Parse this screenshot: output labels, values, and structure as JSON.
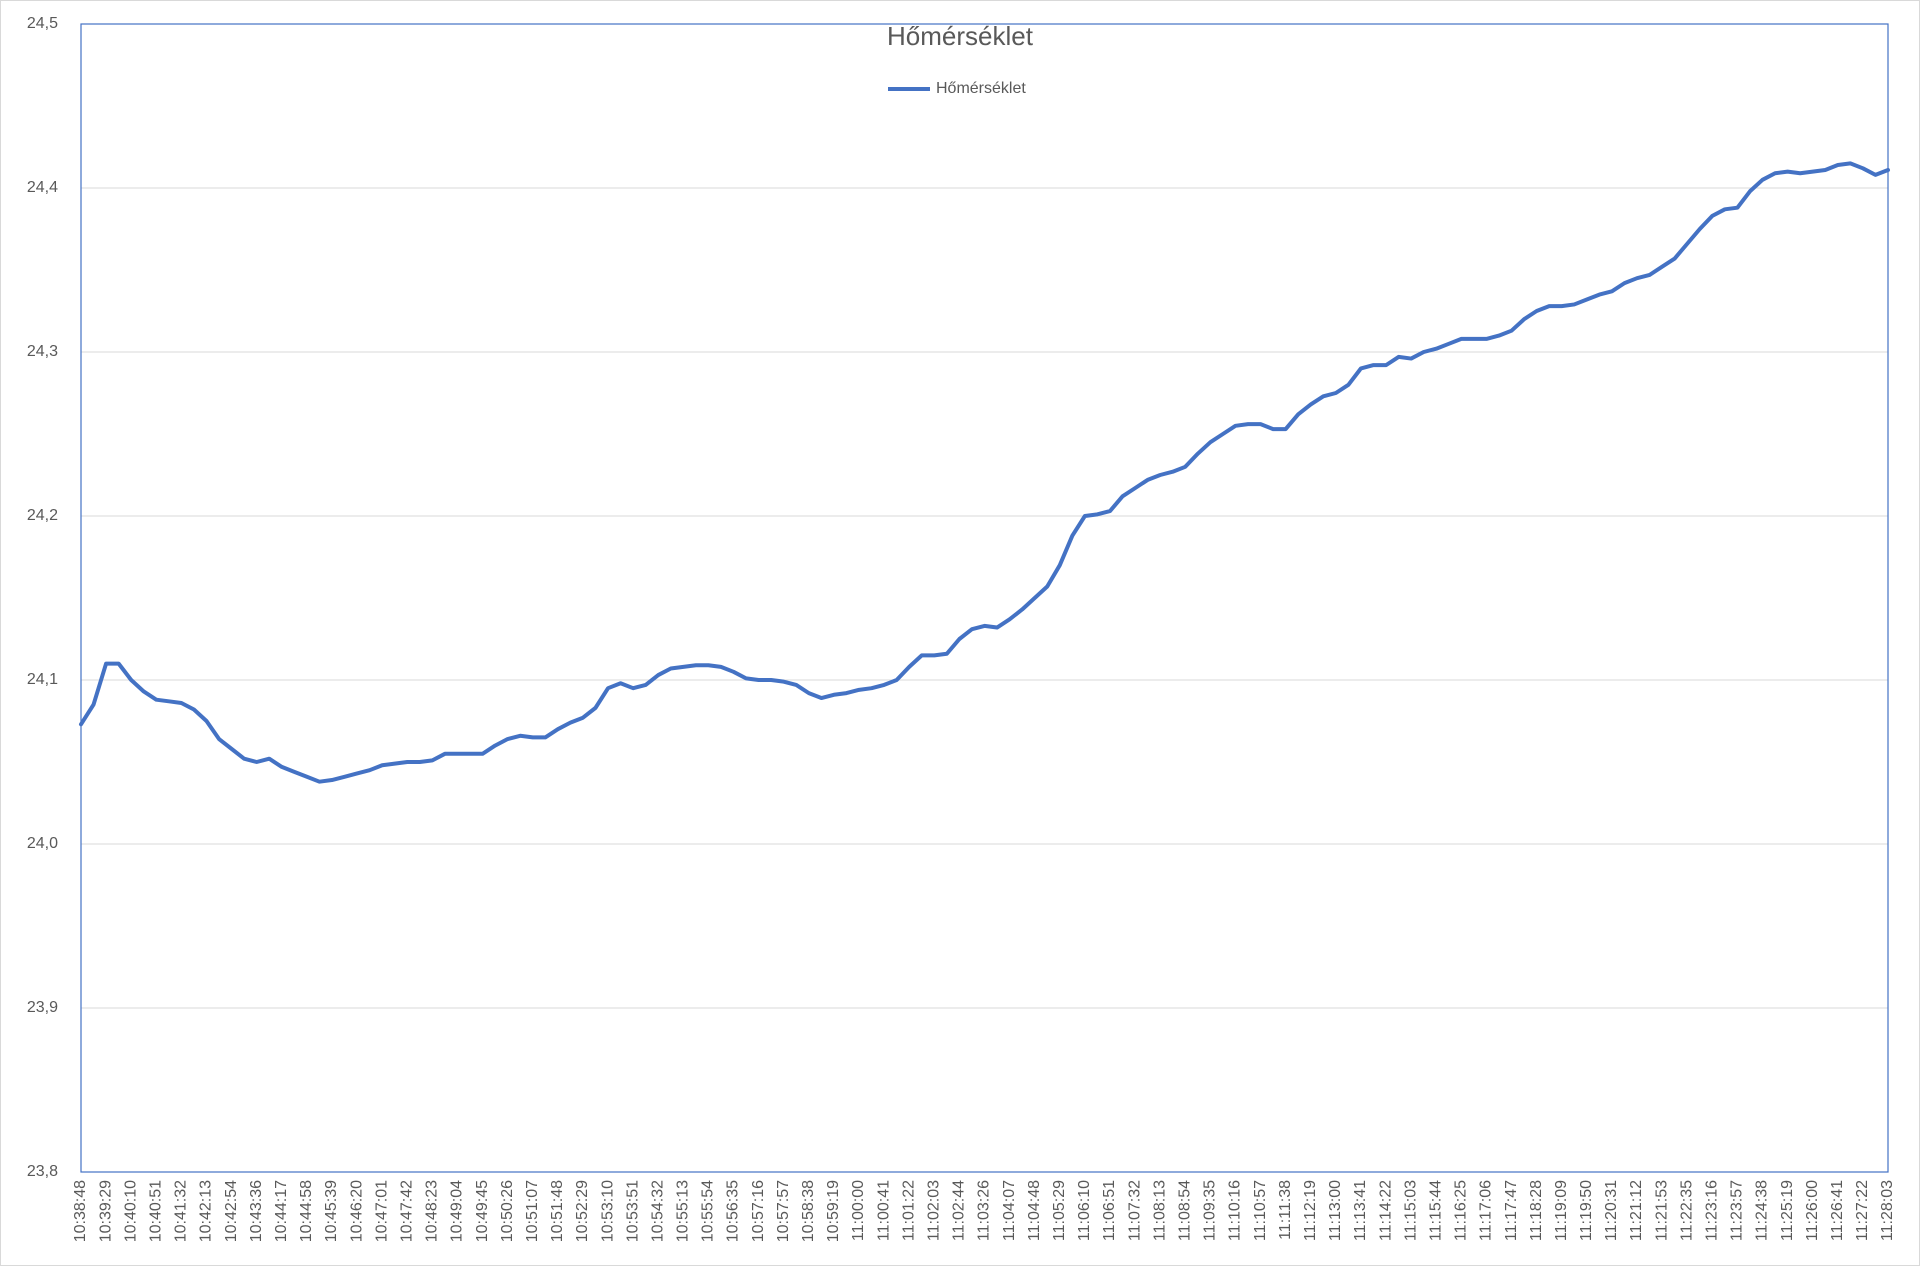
{
  "chart_data": {
    "type": "line",
    "title": "Hőmérséklet",
    "categories": [
      "10:38:48",
      null,
      "10:39:29",
      null,
      "10:40:10",
      null,
      "10:40:51",
      null,
      "10:41:32",
      null,
      "10:42:13",
      null,
      "10:42:54",
      null,
      "10:43:36",
      null,
      "10:44:17",
      null,
      "10:44:58",
      null,
      "10:45:39",
      null,
      "10:46:20",
      null,
      "10:47:01",
      null,
      "10:47:42",
      null,
      "10:48:23",
      null,
      "10:49:04",
      null,
      "10:49:45",
      null,
      "10:50:26",
      null,
      "10:51:07",
      null,
      "10:51:48",
      null,
      "10:52:29",
      null,
      "10:53:10",
      null,
      "10:53:51",
      null,
      "10:54:32",
      null,
      "10:55:13",
      null,
      "10:55:54",
      null,
      "10:56:35",
      null,
      "10:57:16",
      null,
      "10:57:57",
      null,
      "10:58:38",
      null,
      "10:59:19",
      null,
      "11:00:00",
      null,
      "11:00:41",
      null,
      "11:01:22",
      null,
      "11:02:03",
      null,
      "11:02:44",
      null,
      "11:03:26",
      null,
      "11:04:07",
      null,
      "11:04:48",
      null,
      "11:05:29",
      null,
      "11:06:10",
      null,
      "11:06:51",
      null,
      "11:07:32",
      null,
      "11:08:13",
      null,
      "11:08:54",
      null,
      "11:09:35",
      null,
      "11:10:16",
      null,
      "11:10:57",
      null,
      "11:11:38",
      null,
      "11:12:19",
      null,
      "11:13:00",
      null,
      "11:13:41",
      null,
      "11:14:22",
      null,
      "11:15:03",
      null,
      "11:15:44",
      null,
      "11:16:25",
      null,
      "11:17:06",
      null,
      "11:17:47",
      null,
      "11:18:28",
      null,
      "11:19:09",
      null,
      "11:19:50",
      null,
      "11:20:31",
      null,
      "11:21:12",
      null,
      "11:21:53",
      null,
      "11:22:35",
      null,
      "11:23:16",
      null,
      "11:23:57",
      null,
      "11:24:38",
      null,
      "11:25:19",
      null,
      "11:26:00",
      null,
      "11:26:41",
      null,
      "11:27:22",
      null,
      "11:28:03"
    ],
    "series": [
      {
        "name": "Hőmérséklet",
        "color": "#4472c4",
        "values": [
          24.073,
          24.085,
          24.11,
          24.11,
          24.1,
          24.093,
          24.088,
          24.087,
          24.086,
          24.082,
          24.075,
          24.064,
          24.058,
          24.052,
          24.05,
          24.052,
          24.047,
          24.044,
          24.041,
          24.038,
          24.039,
          24.041,
          24.043,
          24.045,
          24.048,
          24.049,
          24.05,
          24.05,
          24.051,
          24.055,
          24.055,
          24.055,
          24.055,
          24.06,
          24.064,
          24.066,
          24.065,
          24.065,
          24.07,
          24.074,
          24.077,
          24.083,
          24.095,
          24.098,
          24.095,
          24.097,
          24.103,
          24.107,
          24.108,
          24.109,
          24.109,
          24.108,
          24.105,
          24.101,
          24.1,
          24.1,
          24.099,
          24.097,
          24.092,
          24.089,
          24.091,
          24.092,
          24.094,
          24.095,
          24.097,
          24.1,
          24.108,
          24.115,
          24.115,
          24.116,
          24.125,
          24.131,
          24.133,
          24.132,
          24.137,
          24.143,
          24.15,
          24.157,
          24.17,
          24.188,
          24.2,
          24.201,
          24.203,
          24.212,
          24.217,
          24.222,
          24.225,
          24.227,
          24.23,
          24.238,
          24.245,
          24.25,
          24.255,
          24.256,
          24.256,
          24.253,
          24.253,
          24.262,
          24.268,
          24.273,
          24.275,
          24.28,
          24.29,
          24.292,
          24.292,
          24.297,
          24.296,
          24.3,
          24.302,
          24.305,
          24.308,
          24.308,
          24.308,
          24.31,
          24.313,
          24.32,
          24.325,
          24.328,
          24.328,
          24.329,
          24.332,
          24.335,
          24.337,
          24.342,
          24.345,
          24.347,
          24.352,
          24.357,
          24.366,
          24.375,
          24.383,
          24.387,
          24.388,
          24.398,
          24.405,
          24.409,
          24.41,
          24.409,
          24.41,
          24.411,
          24.414,
          24.415,
          24.412,
          24.408,
          24.411
        ]
      }
    ],
    "ylim": [
      23.8,
      24.5
    ],
    "yticks": [
      {
        "value": 23.8,
        "label": "23,8"
      },
      {
        "value": 23.9,
        "label": "23,9"
      },
      {
        "value": 24.0,
        "label": "24,0"
      },
      {
        "value": 24.1,
        "label": "24,1"
      },
      {
        "value": 24.2,
        "label": "24,2"
      },
      {
        "value": 24.3,
        "label": "24,3"
      },
      {
        "value": 24.4,
        "label": "24,4"
      },
      {
        "value": 24.5,
        "label": "24,5"
      }
    ],
    "grid": true,
    "legend": "top"
  }
}
